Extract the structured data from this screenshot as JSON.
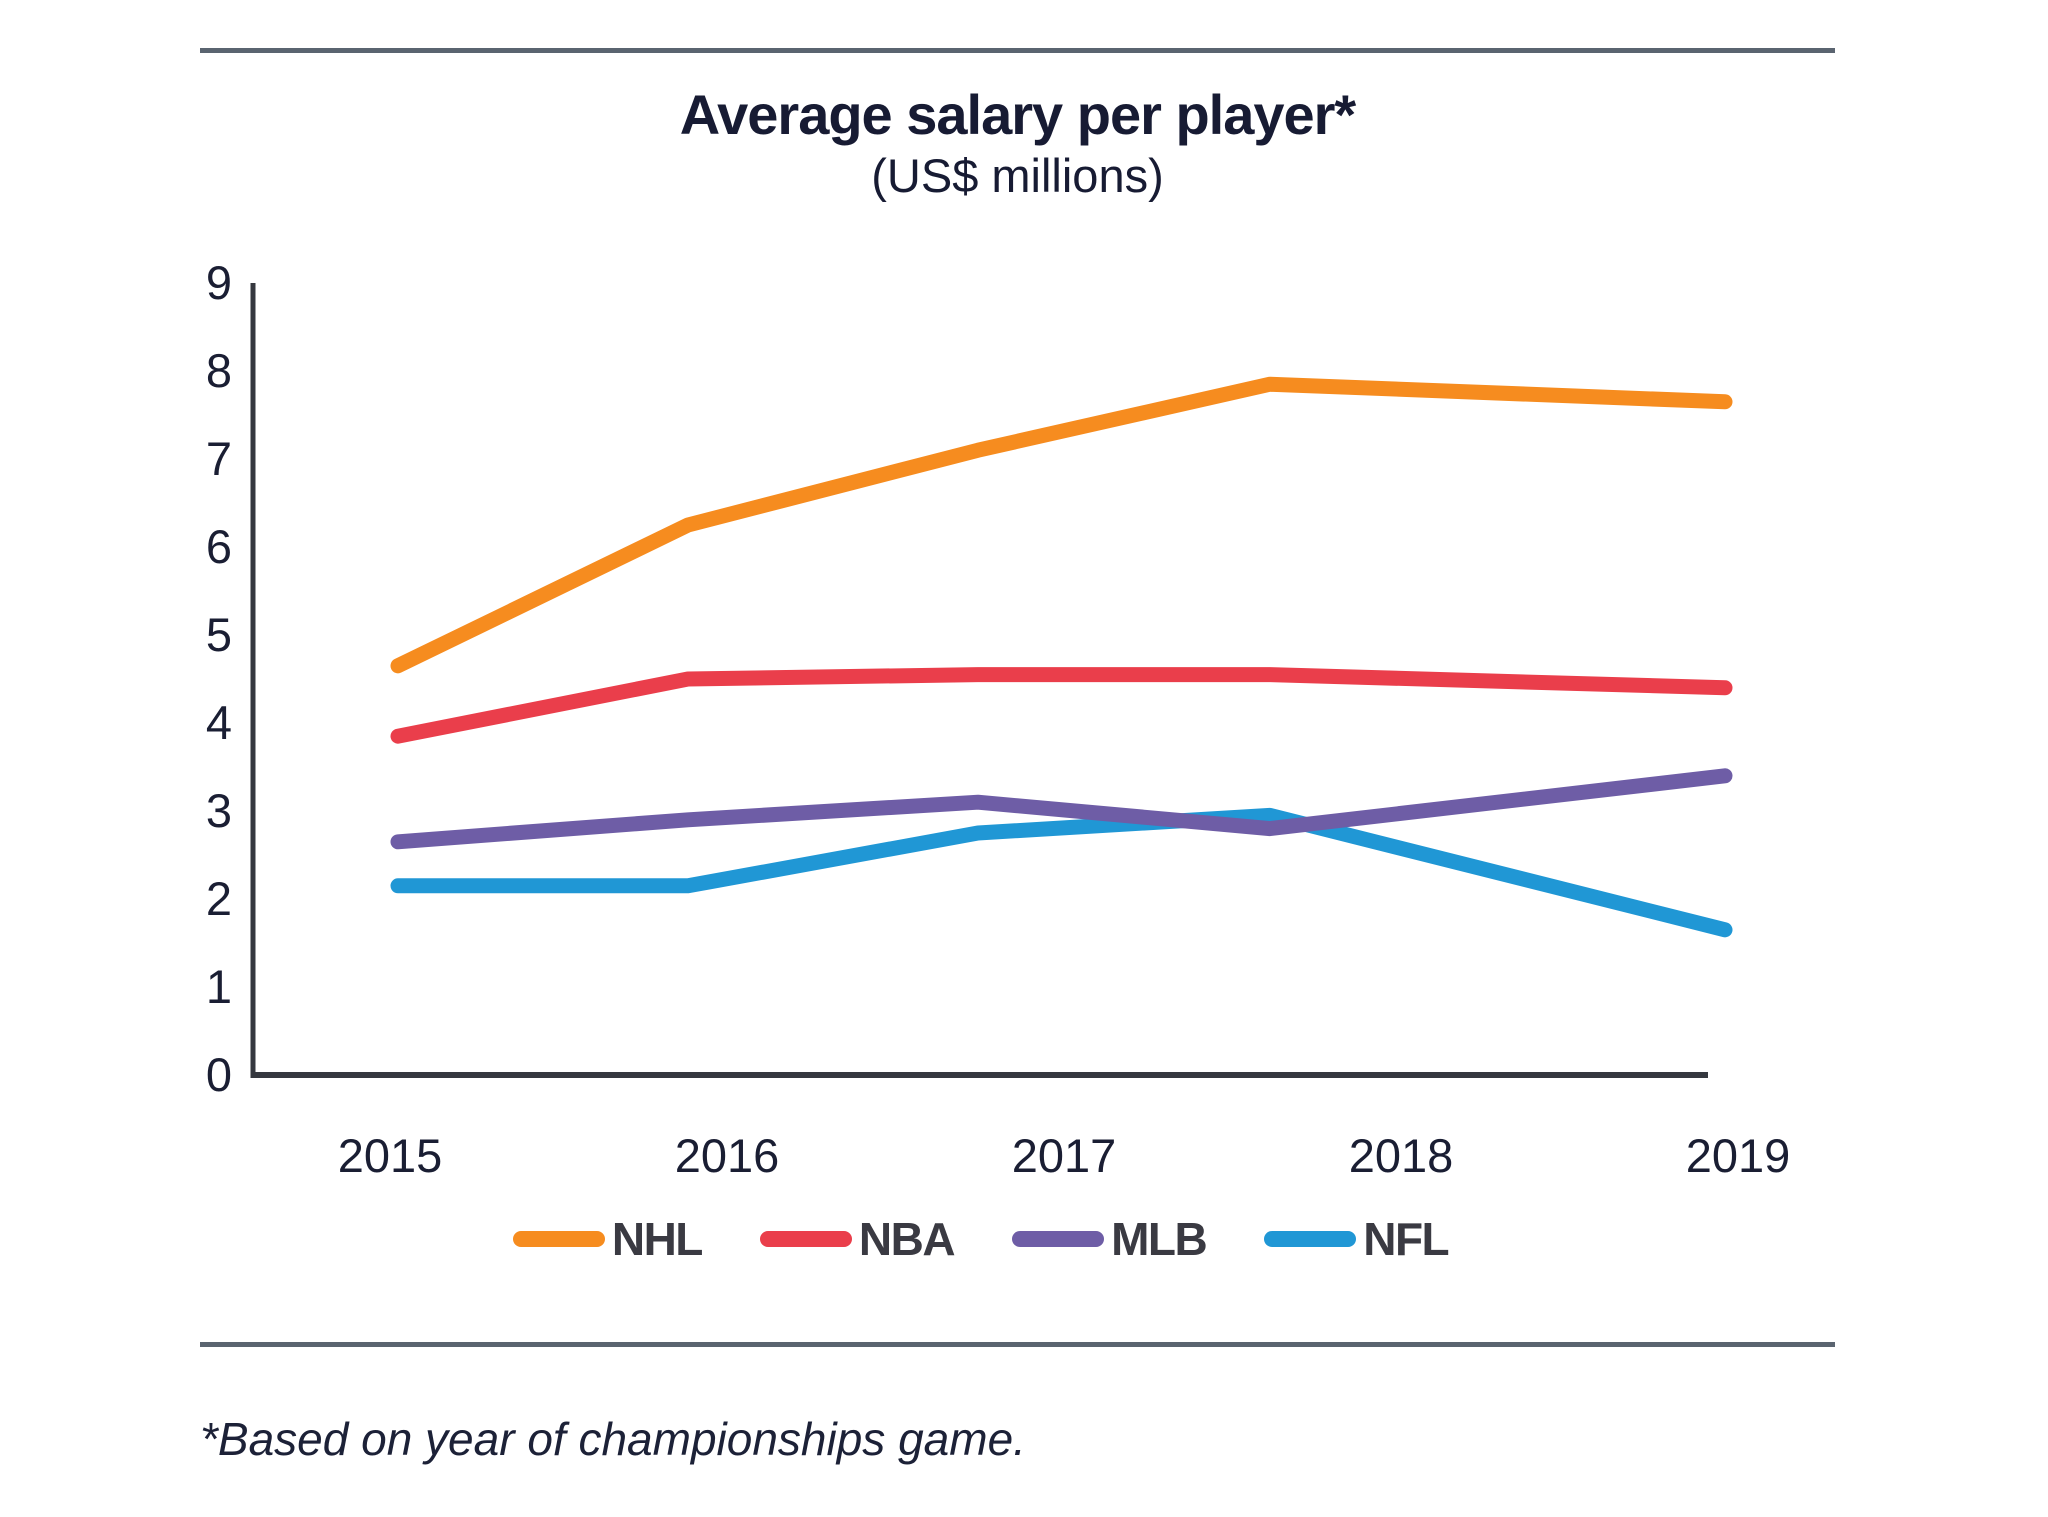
{
  "page": {
    "title": "Average salary per player*",
    "subtitle": "(US$ millions)",
    "footnote": "*Based on year of championships game."
  },
  "chart_data": {
    "type": "line",
    "title": "Average salary per player*",
    "subtitle": "(US$ millions)",
    "categories": [
      "2015",
      "2016",
      "2017",
      "2018",
      "2019"
    ],
    "series": [
      {
        "name": "NHL",
        "color": "#f68c1f",
        "values": [
          4.65,
          6.25,
          7.1,
          7.85,
          7.65
        ]
      },
      {
        "name": "NBA",
        "color": "#ea3e4b",
        "values": [
          3.85,
          4.5,
          4.55,
          4.55,
          4.4
        ]
      },
      {
        "name": "MLB",
        "color": "#6e5da6",
        "values": [
          2.65,
          2.9,
          3.1,
          2.8,
          3.4
        ]
      },
      {
        "name": "NFL",
        "color": "#2097d5",
        "values": [
          2.15,
          2.15,
          2.75,
          2.95,
          1.65
        ]
      }
    ],
    "ylim": [
      0,
      9
    ],
    "yticks": [
      0,
      1,
      2,
      3,
      4,
      5,
      6,
      7,
      8,
      9
    ],
    "xlabel": "",
    "ylabel": "",
    "grid": false,
    "legend_position": "bottom"
  },
  "colors": {
    "title_text": "#171b33",
    "tick_text": "#1a1e33",
    "axis_line": "#35383f",
    "divider": "#5a6470",
    "legend_text": "#3a3a42",
    "background": "#ffffff"
  }
}
